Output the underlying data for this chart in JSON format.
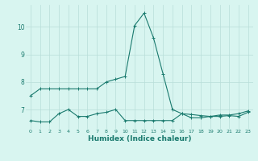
{
  "xlabel": "Humidex (Indice chaleur)",
  "x_values": [
    0,
    1,
    2,
    3,
    4,
    5,
    6,
    7,
    8,
    9,
    10,
    11,
    12,
    13,
    14,
    15,
    16,
    17,
    18,
    19,
    20,
    21,
    22,
    23
  ],
  "line1_y": [
    7.5,
    7.75,
    7.75,
    7.75,
    7.75,
    7.75,
    7.75,
    7.75,
    8.0,
    8.1,
    8.2,
    10.05,
    10.5,
    9.6,
    8.3,
    7.0,
    6.85,
    6.82,
    6.78,
    6.75,
    6.75,
    6.78,
    6.75,
    6.9
  ],
  "line2_y": [
    6.6,
    6.55,
    6.55,
    6.85,
    7.0,
    6.75,
    6.75,
    6.85,
    6.9,
    7.0,
    6.6,
    6.6,
    6.6,
    6.6,
    6.6,
    6.6,
    6.85,
    6.7,
    6.7,
    6.75,
    6.8,
    6.8,
    6.85,
    6.95
  ],
  "line_color": "#1a7a6e",
  "bg_color": "#d8f5f0",
  "grid_color": "#b8ddd8",
  "ylim": [
    6.3,
    10.8
  ],
  "xlim": [
    -0.5,
    23.5
  ],
  "yticks": [
    7,
    8,
    9,
    10
  ],
  "xticks": [
    0,
    1,
    2,
    3,
    4,
    5,
    6,
    7,
    8,
    9,
    10,
    11,
    12,
    13,
    14,
    15,
    16,
    17,
    18,
    19,
    20,
    21,
    22,
    23
  ]
}
